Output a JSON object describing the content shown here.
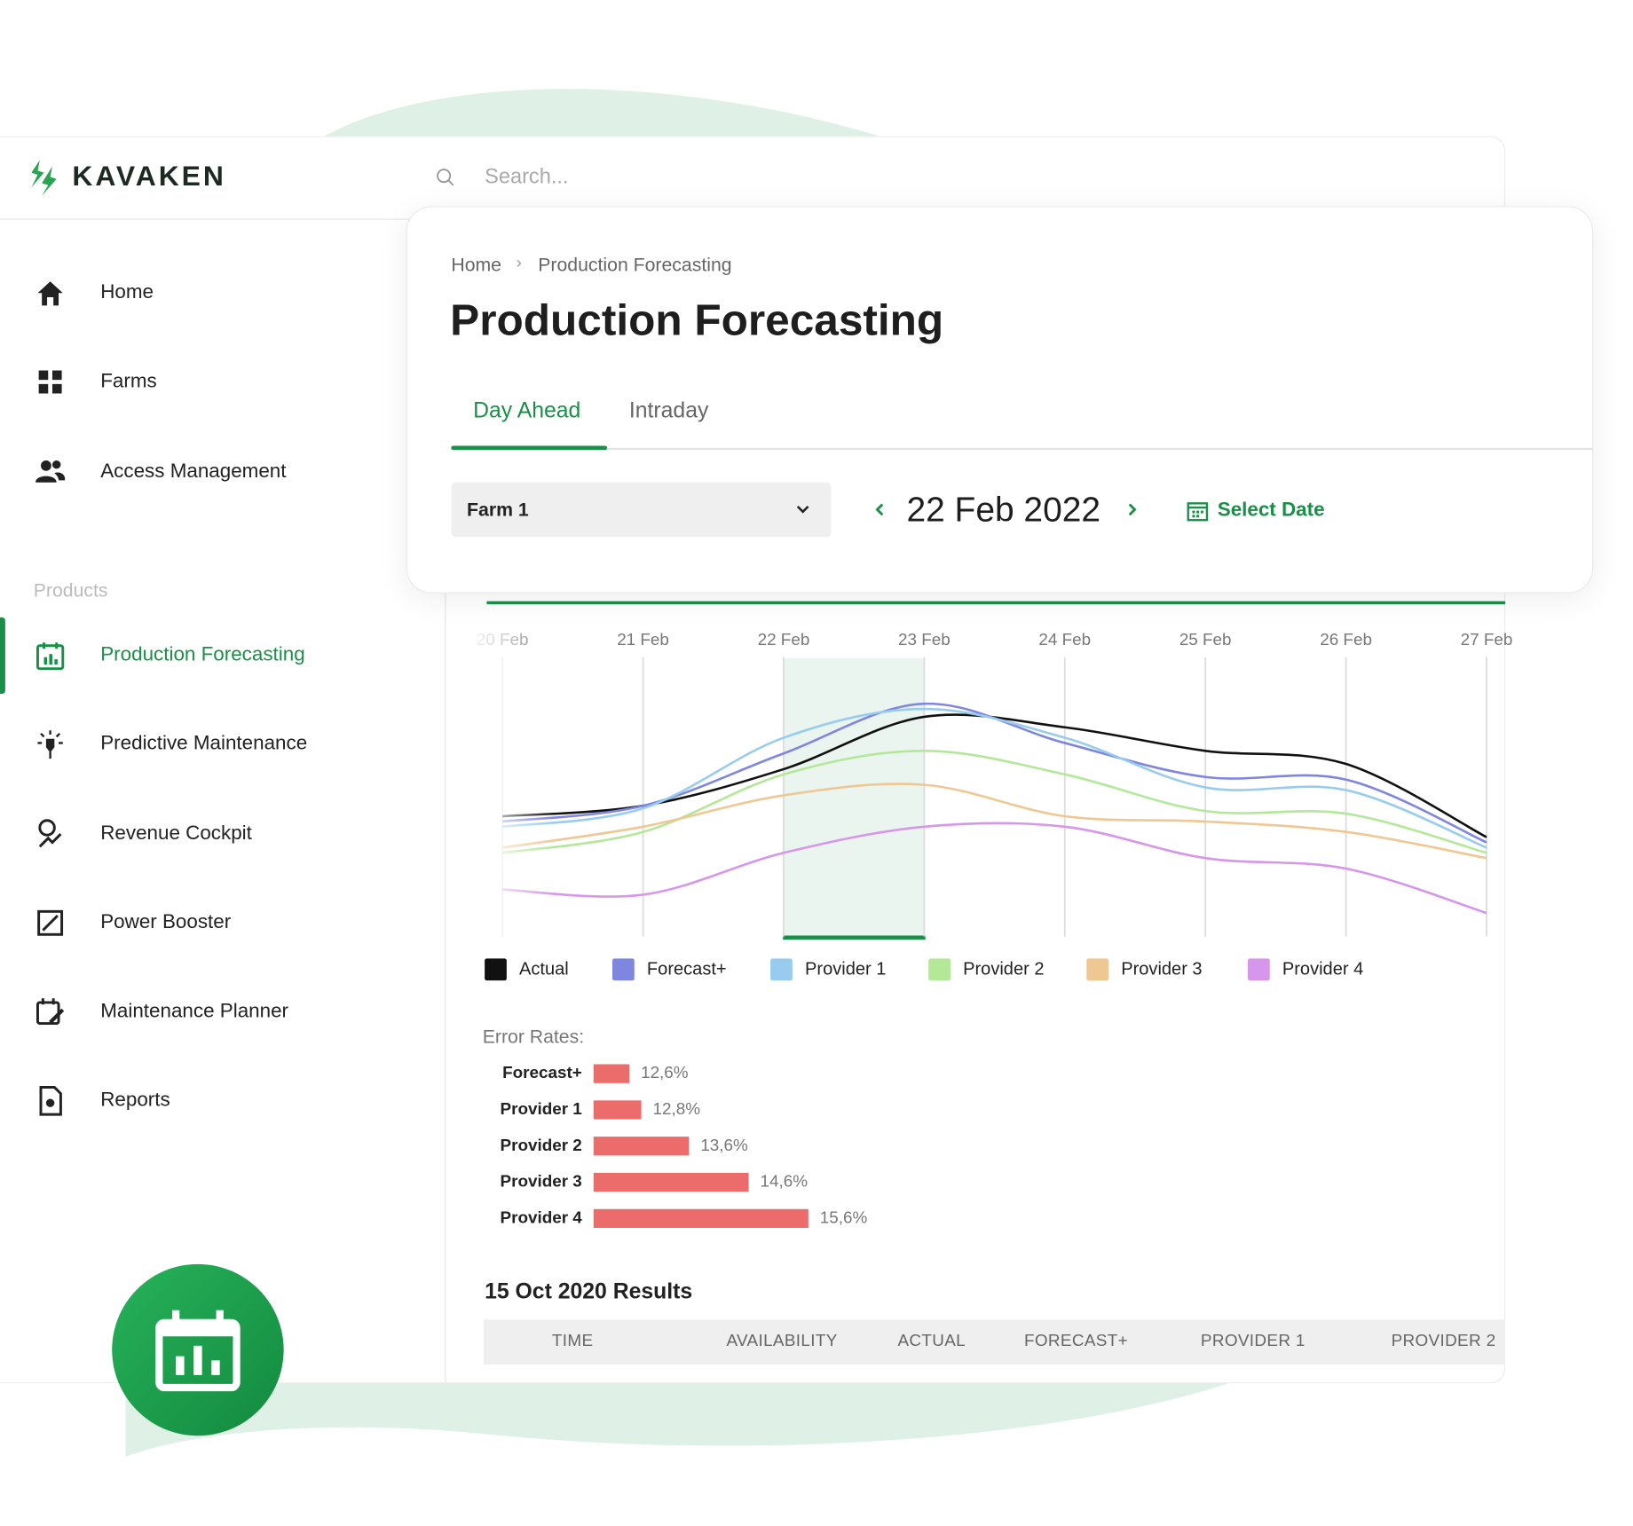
{
  "header": {
    "brand": "KAVAKEN",
    "search_placeholder": "Search..."
  },
  "sidebar": {
    "nav": [
      "Home",
      "Farms",
      "Access Management"
    ],
    "section": "Products",
    "products": [
      "Production Forecasting",
      "Predictive Maintenance",
      "Revenue Cockpit",
      "Power Booster",
      "Maintenance Planner",
      "Reports"
    ]
  },
  "page": {
    "breadcrumb": [
      "Home",
      "Production Forecasting"
    ],
    "title": "Production Forecasting",
    "tabs": [
      "Day Ahead",
      "Intraday"
    ],
    "farm": "Farm 1",
    "date": "22 Feb 2022",
    "select_date": "Select Date"
  },
  "chart_data": [
    {
      "type": "line",
      "categories": [
        "20 Feb",
        "21 Feb",
        "22 Feb",
        "23 Feb",
        "24 Feb",
        "25 Feb",
        "26 Feb",
        "27 Feb"
      ],
      "series": [
        {
          "name": "Actual",
          "color": "#111111",
          "values": [
            48,
            52,
            66,
            86,
            82,
            73,
            68,
            40
          ]
        },
        {
          "name": "Forecast+",
          "color": "#7f86e0",
          "values": [
            46,
            52,
            72,
            91,
            76,
            63,
            62,
            38
          ]
        },
        {
          "name": "Provider 1",
          "color": "#98ccef",
          "values": [
            44,
            51,
            78,
            89,
            78,
            59,
            58,
            36
          ]
        },
        {
          "name": "Provider 2",
          "color": "#b3e898",
          "values": [
            34,
            42,
            64,
            73,
            64,
            50,
            49,
            34
          ]
        },
        {
          "name": "Provider 3",
          "color": "#efc793",
          "values": [
            36,
            44,
            56,
            60,
            48,
            46,
            42,
            32
          ]
        },
        {
          "name": "Provider 4",
          "color": "#d696ea",
          "values": [
            20,
            18,
            34,
            44,
            44,
            32,
            28,
            11
          ]
        }
      ],
      "grid": true
    },
    {
      "type": "bar",
      "orientation": "horizontal",
      "title": "Error Rates:",
      "categories": [
        "Forecast+",
        "Provider 1",
        "Provider 2",
        "Provider 3",
        "Provider 4"
      ],
      "values": [
        12.6,
        12.8,
        13.6,
        14.6,
        15.6
      ],
      "value_labels": [
        "12,6%",
        "12,8%",
        "13,6%",
        "14,6%",
        "15,6%"
      ],
      "color": "#ec6b6b",
      "xlim": [
        12,
        16
      ]
    }
  ],
  "results": {
    "title": "15 Oct 2020 Results",
    "columns": [
      "TIME",
      "AVAILABILITY",
      "ACTUAL",
      "FORECAST+",
      "PROVIDER 1",
      "PROVIDER 2"
    ]
  }
}
